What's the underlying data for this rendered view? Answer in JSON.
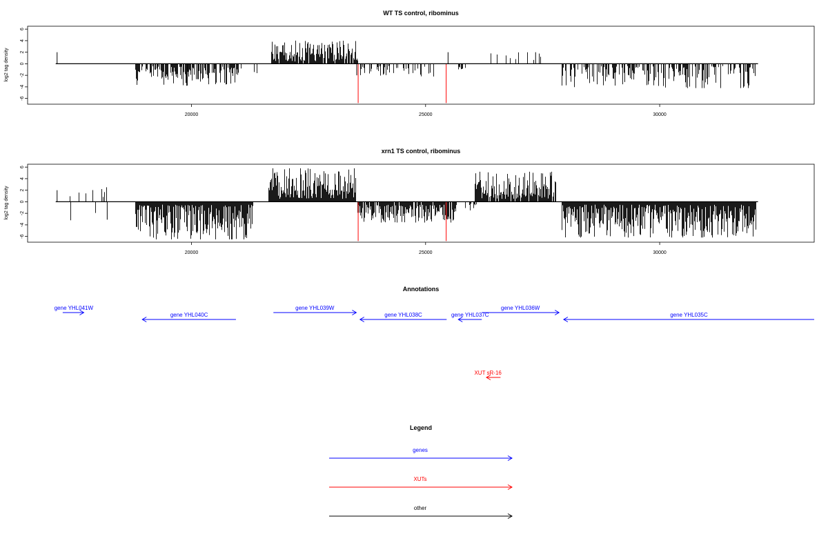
{
  "chart_data": [
    {
      "type": "bar",
      "title": "WT TS control, ribominus",
      "ylabel": "log2 tag density",
      "yticks": [
        -6,
        -4,
        -2,
        0,
        2,
        4,
        6
      ],
      "xticks": [
        20000,
        25000,
        30000
      ],
      "xlim": [
        16500,
        33300
      ],
      "ylim": [
        -7,
        6.5
      ],
      "grid": false,
      "baseline": [
        17100,
        32100
      ],
      "segments": [
        {
          "x0": 18800,
          "x1": 19900,
          "sign": -1,
          "density": 0.7,
          "min": 0.4,
          "max": 3.8,
          "seed": 11
        },
        {
          "x0": 19900,
          "x1": 21000,
          "sign": -1,
          "density": 0.7,
          "min": 0.5,
          "max": 3.6,
          "seed": 12
        },
        {
          "x0": 21000,
          "x1": 21400,
          "sign": -1,
          "density": 0.05,
          "min": 0.5,
          "max": 1.8,
          "seed": 13
        },
        {
          "x0": 21700,
          "x1": 23550,
          "sign": 1,
          "density": 0.8,
          "min": 0.4,
          "max": 4.0,
          "seed": 14
        },
        {
          "x0": 23600,
          "x1": 25200,
          "sign": -1,
          "density": 0.45,
          "min": 0.4,
          "max": 2.2,
          "seed": 15
        },
        {
          "x0": 25700,
          "x1": 25850,
          "sign": -1,
          "density": 0.3,
          "min": 0.5,
          "max": 1.2,
          "seed": 16
        },
        {
          "x0": 26200,
          "x1": 27600,
          "sign": 1,
          "density": 0.1,
          "min": 0.6,
          "max": 2.0,
          "seed": 17
        },
        {
          "x0": 27900,
          "x1": 32050,
          "sign": -1,
          "density": 0.55,
          "min": 0.4,
          "max": 4.2,
          "seed": 18
        }
      ],
      "points": [
        [
          17130,
          2.0
        ],
        [
          23530,
          -2.0
        ],
        [
          25480,
          2.0
        ],
        [
          27350,
          2.0
        ]
      ],
      "red_lines": [
        [
          23560,
          -6.8
        ],
        [
          25440,
          -6.8
        ]
      ]
    },
    {
      "type": "bar",
      "title": "xrn1 TS control, ribominus",
      "ylabel": "log2 tag density",
      "yticks": [
        -6,
        -4,
        -2,
        0,
        2,
        4,
        6
      ],
      "xticks": [
        20000,
        25000,
        30000
      ],
      "xlim": [
        16500,
        33300
      ],
      "ylim": [
        -7,
        6.5
      ],
      "grid": false,
      "baseline": [
        17100,
        32100
      ],
      "segments": [
        {
          "x0": 17100,
          "x1": 18300,
          "sign": 1,
          "density": 0.07,
          "min": 0.3,
          "max": 2.8,
          "seed": 21
        },
        {
          "x0": 17200,
          "x1": 18100,
          "sign": -1,
          "density": 0.04,
          "min": 0.3,
          "max": 3.2,
          "seed": 22
        },
        {
          "x0": 18800,
          "x1": 21300,
          "sign": -1,
          "density": 1.0,
          "min": 0.5,
          "max": 6.5,
          "seed": 23
        },
        {
          "x0": 21650,
          "x1": 23500,
          "sign": 1,
          "density": 1.0,
          "min": 0.5,
          "max": 5.8,
          "seed": 24
        },
        {
          "x0": 23550,
          "x1": 25650,
          "sign": -1,
          "density": 0.9,
          "min": 0.5,
          "max": 3.6,
          "seed": 25
        },
        {
          "x0": 26050,
          "x1": 27800,
          "sign": 1,
          "density": 0.9,
          "min": 0.5,
          "max": 5.2,
          "seed": 26
        },
        {
          "x0": 25850,
          "x1": 26100,
          "sign": -1,
          "density": 0.3,
          "min": 0.3,
          "max": 1.5,
          "seed": 27
        },
        {
          "x0": 27900,
          "x1": 32050,
          "sign": -1,
          "density": 1.0,
          "min": 0.5,
          "max": 6.2,
          "seed": 28
        }
      ],
      "points": [
        [
          17130,
          2.0
        ],
        [
          18200,
          -3.1
        ]
      ],
      "red_lines": [
        [
          23560,
          -6.8
        ],
        [
          25440,
          -6.8
        ]
      ]
    }
  ],
  "annotations": {
    "title": "Annotations",
    "features": [
      {
        "label": "gene YHL041W",
        "start": 17250,
        "end": 17700,
        "strand": "+",
        "color": "#0000ff",
        "row": 0
      },
      {
        "label": "gene YHL040C",
        "start": 18950,
        "end": 20950,
        "strand": "-",
        "color": "#0000ff",
        "row": 1
      },
      {
        "label": "gene YHL039W",
        "start": 21750,
        "end": 23520,
        "strand": "+",
        "color": "#0000ff",
        "row": 0
      },
      {
        "label": "gene YHL038C",
        "start": 23600,
        "end": 25450,
        "strand": "-",
        "color": "#0000ff",
        "row": 1
      },
      {
        "label": "gene YHL037C",
        "start": 25700,
        "end": 26200,
        "strand": "-",
        "color": "#0000ff",
        "row": 1
      },
      {
        "label": "gene YHL036W",
        "start": 26200,
        "end": 27850,
        "strand": "+",
        "color": "#0000ff",
        "row": 0
      },
      {
        "label": "gene YHL035C",
        "start": 27950,
        "end": 33300,
        "strand": "-",
        "color": "#0000ff",
        "row": 1
      },
      {
        "label": "XUT sR-16",
        "start": 26300,
        "end": 26600,
        "strand": "-",
        "color": "#ff0000",
        "row": 2
      }
    ]
  },
  "legend": {
    "title": "Legend",
    "items": [
      {
        "label": "genes",
        "color": "#0000ff"
      },
      {
        "label": "XUTs",
        "color": "#ff0000"
      },
      {
        "label": "other",
        "color": "#000000"
      }
    ]
  }
}
